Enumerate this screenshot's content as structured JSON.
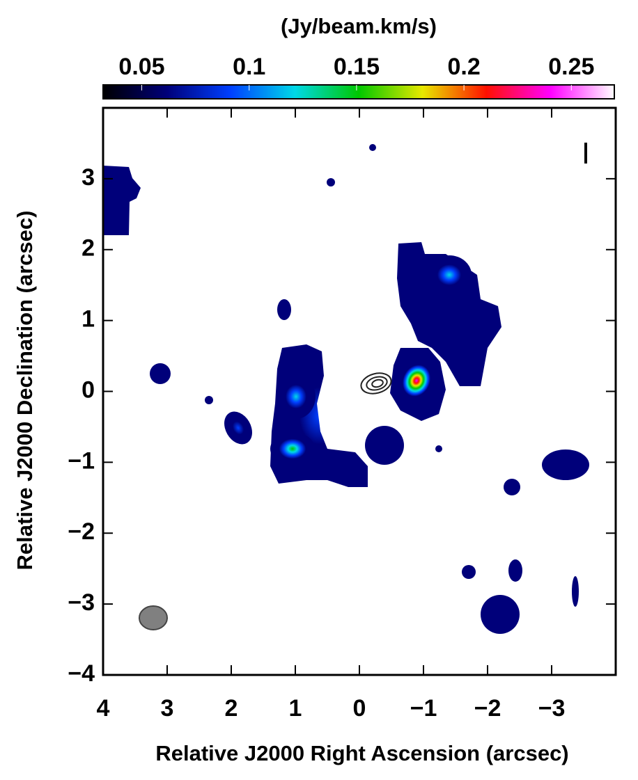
{
  "chart_data": {
    "type": "image",
    "colorbar_label": "(Jy/beam.km/s)",
    "clim": [
      0.032,
      0.27
    ],
    "cticks": [
      0.05,
      0.1,
      0.15,
      0.2,
      0.25
    ],
    "colormap": [
      "#000000",
      "#00007a",
      "#0040ff",
      "#00d8e8",
      "#00c800",
      "#e8e800",
      "#ff1000",
      "#ff00ff",
      "#ffffff"
    ],
    "xlabel": "Relative J2000 Right Ascension (arcsec)",
    "ylabel": "Relative J2000 Declination (arcsec)",
    "xlim": [
      4,
      -4
    ],
    "ylim": [
      -4,
      4
    ],
    "xticks": [
      4,
      3,
      2,
      1,
      0,
      {
        "value": -1,
        "label": "−1"
      },
      {
        "value": -2,
        "label": "−2"
      },
      {
        "value": -3,
        "label": "−3"
      }
    ],
    "yticks": [
      {
        "value": -4,
        "label": "−4"
      },
      {
        "value": -3,
        "label": "−3"
      },
      {
        "value": -2,
        "label": "−2"
      },
      {
        "value": -1,
        "label": "−1"
      },
      0,
      1,
      2,
      3
    ]
  }
}
